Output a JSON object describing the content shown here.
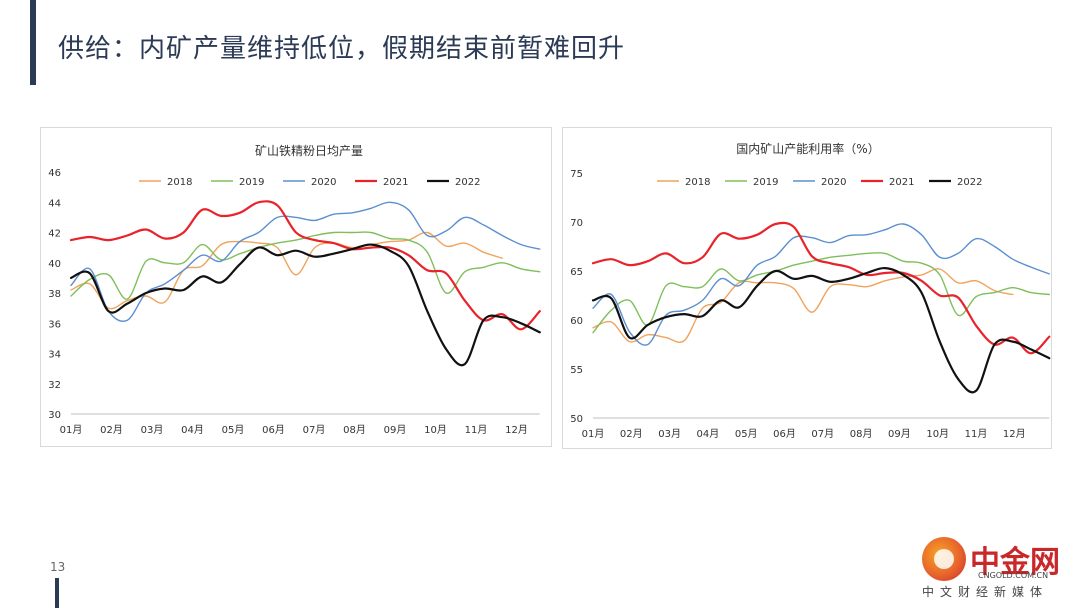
{
  "slide": {
    "title": "供给：内矿产量维持低位，假期结束前暂难回升",
    "page_number": "13"
  },
  "logo": {
    "name": "中金网",
    "domain": "CNGOLD.COM.CN",
    "subtitle": "中文财经新媒体"
  },
  "colors": {
    "2018": "#f0a35e",
    "2019": "#7fbf5a",
    "2020": "#5b8fd0",
    "2021": "#e8232a",
    "2022": "#111111",
    "title": "#2b3a55"
  },
  "chart_data": [
    {
      "type": "line",
      "title": "矿山铁精粉日均产量",
      "xlabel": "",
      "ylabel": "",
      "ylim": [
        30,
        46
      ],
      "yticks": [
        30,
        32,
        34,
        36,
        38,
        40,
        42,
        44,
        46
      ],
      "categories": [
        "01月",
        "02月",
        "03月",
        "04月",
        "05月",
        "06月",
        "07月",
        "08月",
        "09月",
        "10月",
        "11月",
        "12月"
      ],
      "grid": false,
      "legend": "top",
      "series": [
        {
          "name": "2018",
          "x": [
            0,
            0.5,
            1,
            1.5,
            2,
            2.5,
            3,
            3.5,
            4,
            4.5,
            5,
            5.5,
            6,
            6.5,
            7,
            7.5,
            8,
            8.5,
            9,
            9.5,
            10,
            10.5,
            11,
            11.5
          ],
          "values": [
            38.2,
            38.6,
            37.0,
            37.5,
            37.8,
            37.4,
            39.5,
            39.8,
            41.2,
            41.4,
            41.3,
            41.0,
            39.2,
            41.0,
            41.3,
            41.0,
            41.2,
            41.4,
            41.5,
            42.0,
            41.1,
            41.3,
            40.7,
            40.3
          ]
        },
        {
          "name": "2019",
          "x": [
            0,
            0.5,
            1,
            1.5,
            2,
            2.5,
            3,
            3.5,
            4,
            4.5,
            5,
            5.5,
            6,
            6.5,
            7,
            7.5,
            8,
            8.5,
            9,
            9.5,
            10,
            10.5,
            11,
            11.5,
            12,
            12.5
          ],
          "values": [
            37.8,
            38.9,
            39.2,
            37.6,
            40.1,
            40.0,
            40.0,
            41.2,
            40.2,
            40.6,
            41.0,
            41.3,
            41.5,
            41.8,
            42.0,
            42.0,
            42.0,
            41.6,
            41.5,
            40.7,
            38.0,
            39.4,
            39.7,
            40.0,
            39.6,
            39.4
          ]
        },
        {
          "name": "2020",
          "x": [
            0,
            0.5,
            1,
            1.5,
            2,
            2.5,
            3,
            3.5,
            4,
            4.5,
            5,
            5.5,
            6,
            6.5,
            7,
            7.5,
            8,
            8.5,
            9,
            9.5,
            10,
            10.5,
            11,
            11.5,
            12,
            12.5
          ],
          "values": [
            38.5,
            39.6,
            36.8,
            36.2,
            38.0,
            38.6,
            39.5,
            40.5,
            40.1,
            41.4,
            42.0,
            43.0,
            43.0,
            42.8,
            43.2,
            43.3,
            43.6,
            44.0,
            43.5,
            41.8,
            42.1,
            43.0,
            42.5,
            41.8,
            41.2,
            40.9
          ]
        },
        {
          "name": "2021",
          "x": [
            0,
            0.5,
            1,
            1.5,
            2,
            2.5,
            3,
            3.5,
            4,
            4.5,
            5,
            5.5,
            6,
            6.5,
            7,
            7.5,
            8,
            8.5,
            9,
            9.5,
            10,
            10.5,
            11,
            11.5,
            12,
            12.5
          ],
          "values": [
            41.5,
            41.7,
            41.5,
            41.8,
            42.2,
            41.6,
            42.0,
            43.5,
            43.1,
            43.3,
            44.0,
            43.8,
            42.0,
            41.5,
            41.3,
            40.9,
            41.0,
            41.0,
            40.5,
            39.5,
            39.3,
            37.5,
            36.2,
            36.6,
            35.6,
            36.8
          ]
        },
        {
          "name": "2022",
          "x": [
            0,
            0.5,
            1,
            1.5,
            2,
            2.5,
            3,
            3.5,
            4,
            4.5,
            5,
            5.5,
            6,
            6.5,
            7,
            7.5,
            8,
            8.5,
            9,
            9.5,
            10,
            10.5,
            11,
            11.5,
            12,
            12.5
          ],
          "values": [
            39.0,
            39.3,
            36.8,
            37.3,
            38.0,
            38.3,
            38.2,
            39.1,
            38.7,
            39.9,
            41.0,
            40.5,
            40.8,
            40.4,
            40.6,
            40.9,
            41.2,
            40.8,
            39.8,
            36.8,
            34.3,
            33.3,
            36.2,
            36.4,
            36.0,
            35.4
          ]
        }
      ]
    },
    {
      "type": "line",
      "title": "国内矿山产能利用率（%）",
      "xlabel": "",
      "ylabel": "",
      "ylim": [
        50,
        75
      ],
      "yticks": [
        50,
        55,
        60,
        65,
        70,
        75
      ],
      "categories": [
        "01月",
        "02月",
        "03月",
        "04月",
        "05月",
        "06月",
        "07月",
        "08月",
        "09月",
        "10月",
        "11月",
        "12月"
      ],
      "grid": false,
      "legend": "top",
      "series": [
        {
          "name": "2018",
          "x": [
            0,
            0.5,
            1,
            1.5,
            2,
            2.5,
            3,
            3.5,
            4,
            4.5,
            5,
            5.5,
            6,
            6.5,
            7,
            7.5,
            8,
            8.5,
            9,
            9.5,
            10,
            10.5,
            11,
            11.5
          ],
          "values": [
            59.2,
            59.8,
            57.8,
            58.5,
            58.2,
            57.9,
            61.2,
            61.8,
            63.8,
            63.8,
            63.8,
            63.2,
            60.8,
            63.4,
            63.6,
            63.4,
            64.0,
            64.4,
            64.6,
            65.2,
            63.8,
            64.0,
            63.0,
            62.6
          ]
        },
        {
          "name": "2019",
          "x": [
            0,
            0.5,
            1,
            1.5,
            2,
            2.5,
            3,
            3.5,
            4,
            4.5,
            5,
            5.5,
            6,
            6.5,
            7,
            7.5,
            8,
            8.5,
            9,
            9.5,
            10,
            10.5,
            11,
            11.5,
            12,
            12.5
          ],
          "values": [
            58.7,
            61.0,
            62.0,
            59.5,
            63.5,
            63.4,
            63.4,
            65.2,
            64.0,
            64.6,
            65.0,
            65.6,
            66.0,
            66.4,
            66.6,
            66.8,
            66.8,
            66.0,
            65.8,
            64.6,
            60.5,
            62.4,
            62.8,
            63.3,
            62.8,
            62.6
          ]
        },
        {
          "name": "2020",
          "x": [
            0,
            0.5,
            1,
            1.5,
            2,
            2.5,
            3,
            3.5,
            4,
            4.5,
            5,
            5.5,
            6,
            6.5,
            7,
            7.5,
            8,
            8.5,
            9,
            9.5,
            10,
            10.5,
            11,
            11.5,
            12,
            12.5
          ],
          "values": [
            61.2,
            62.6,
            58.8,
            57.5,
            60.5,
            61.0,
            62.0,
            64.2,
            63.5,
            65.6,
            66.5,
            68.4,
            68.4,
            67.9,
            68.6,
            68.7,
            69.2,
            69.8,
            68.7,
            66.4,
            66.8,
            68.3,
            67.5,
            66.2,
            65.4,
            64.7
          ]
        },
        {
          "name": "2021",
          "x": [
            0,
            0.5,
            1,
            1.5,
            2,
            2.5,
            3,
            3.5,
            4,
            4.5,
            5,
            5.5,
            6,
            6.5,
            7,
            7.5,
            8,
            8.5,
            9,
            9.5,
            10,
            10.5,
            11,
            11.5,
            12,
            12.5
          ],
          "values": [
            65.8,
            66.2,
            65.6,
            66.0,
            66.8,
            65.8,
            66.4,
            68.8,
            68.3,
            68.7,
            69.8,
            69.5,
            66.5,
            65.8,
            65.4,
            64.6,
            64.8,
            64.8,
            64.0,
            62.5,
            62.3,
            59.4,
            57.5,
            58.2,
            56.6,
            58.3
          ]
        },
        {
          "name": "2022",
          "x": [
            0,
            0.5,
            1,
            1.5,
            2,
            2.5,
            3,
            3.5,
            4,
            4.5,
            5,
            5.5,
            6,
            6.5,
            7,
            7.5,
            8,
            8.5,
            9,
            9.5,
            10,
            10.5,
            11,
            11.5,
            12,
            12.5
          ],
          "values": [
            62.0,
            62.2,
            58.2,
            59.5,
            60.3,
            60.6,
            60.4,
            62.0,
            61.3,
            63.5,
            65.0,
            64.2,
            64.5,
            63.9,
            64.2,
            64.8,
            65.3,
            64.6,
            62.8,
            57.8,
            54.0,
            52.8,
            57.5,
            57.8,
            57.0,
            56.1
          ]
        }
      ]
    }
  ]
}
